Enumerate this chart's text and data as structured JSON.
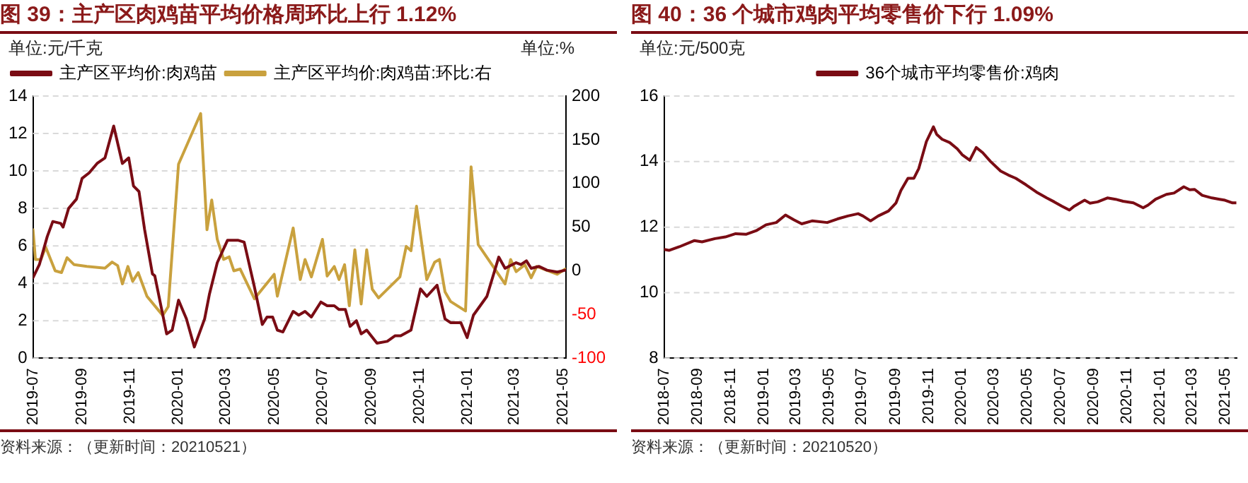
{
  "chart_data": [
    {
      "type": "line",
      "title": "图 39：主产区肉鸡苗平均价格周环比上行 1.12%",
      "ylabel": "单位:元/千克",
      "y2label": "单位:%",
      "xlim": [
        "2019-07-01",
        "2021-05-05"
      ],
      "xticks": [
        "2019-07",
        "2019-09",
        "2019-11",
        "2020-01",
        "2020-03",
        "2020-05",
        "2020-07",
        "2020-09",
        "2020-11",
        "2021-01",
        "2021-03",
        "2021-05"
      ],
      "ylim": [
        0,
        14
      ],
      "yticks": [
        0,
        2,
        4,
        6,
        8,
        10,
        12,
        14
      ],
      "y2lim": [
        -100,
        200
      ],
      "y2ticks": [
        -100,
        -50,
        0,
        50,
        100,
        150,
        200
      ],
      "grid": "y",
      "legend": "top left",
      "marker": "none",
      "line_style": "solid",
      "annotations": [
        "资料来源：（更新时间：20210521）"
      ],
      "series": [
        {
          "name": "主产区平均价:肉鸡苗",
          "color": "#7a0c14",
          "x": [
            "2019-07-01",
            "2019-07-09",
            "2019-07-19",
            "2019-07-26",
            "2019-08-05",
            "2019-08-08",
            "2019-08-15",
            "2019-08-25",
            "2019-09-01",
            "2019-09-10",
            "2019-09-20",
            "2019-09-30",
            "2019-10-11",
            "2019-10-22",
            "2019-10-30",
            "2019-11-05",
            "2019-11-12",
            "2019-11-19",
            "2019-11-29",
            "2019-12-02",
            "2019-12-17",
            "2019-12-24",
            "2020-01-01",
            "2020-01-11",
            "2020-01-21",
            "2020-02-03",
            "2020-02-09",
            "2020-02-19",
            "2020-03-03",
            "2020-03-09",
            "2020-03-16",
            "2020-03-24",
            "2020-04-06",
            "2020-04-16",
            "2020-04-22",
            "2020-04-29",
            "2020-05-05",
            "2020-05-12",
            "2020-05-25",
            "2020-06-01",
            "2020-06-09",
            "2020-06-17",
            "2020-06-29",
            "2020-07-07",
            "2020-07-16",
            "2020-07-22",
            "2020-07-30",
            "2020-08-05",
            "2020-08-13",
            "2020-08-19",
            "2020-08-26",
            "2020-09-08",
            "2020-09-21",
            "2020-10-01",
            "2020-10-08",
            "2020-10-21",
            "2020-11-02",
            "2020-11-10",
            "2020-11-23",
            "2020-12-03",
            "2020-12-10",
            "2020-12-23",
            "2020-12-31",
            "2021-01-08",
            "2021-01-25",
            "2021-02-09",
            "2021-02-17",
            "2021-03-03",
            "2021-03-09",
            "2021-03-16",
            "2021-03-22",
            "2021-04-01",
            "2021-04-11",
            "2021-04-24",
            "2021-05-04"
          ],
          "values": [
            4.3,
            5.0,
            6.5,
            7.3,
            7.2,
            7.0,
            8.0,
            8.5,
            9.6,
            9.9,
            10.4,
            10.7,
            12.4,
            10.4,
            10.7,
            9.2,
            8.9,
            6.9,
            4.5,
            4.4,
            1.3,
            1.5,
            3.1,
            2.1,
            0.6,
            2.1,
            3.4,
            5.1,
            6.3,
            6.3,
            6.3,
            6.2,
            3.8,
            1.8,
            2.2,
            2.2,
            1.5,
            1.4,
            2.5,
            2.3,
            2.5,
            2.2,
            3.0,
            2.8,
            2.8,
            2.6,
            2.6,
            1.7,
            2.0,
            1.3,
            1.5,
            0.8,
            0.9,
            1.2,
            1.2,
            1.5,
            3.7,
            3.3,
            3.9,
            2.1,
            1.9,
            1.9,
            1.1,
            2.3,
            3.3,
            5.4,
            4.8,
            5.1,
            5.0,
            5.2,
            4.8,
            4.9,
            4.7,
            4.6,
            4.7
          ]
        },
        {
          "name": "主产区平均价:肉鸡苗:环比:右",
          "color": "#c9a13e",
          "axis": "y2",
          "x": [
            "2019-07-01",
            "2019-07-04",
            "2019-07-11",
            "2019-07-17",
            "2019-07-29",
            "2019-08-06",
            "2019-08-13",
            "2019-08-22",
            "2019-09-07",
            "2019-09-30",
            "2019-10-09",
            "2019-10-16",
            "2019-10-22",
            "2019-10-29",
            "2019-11-04",
            "2019-11-11",
            "2019-11-22",
            "2019-12-12",
            "2019-12-19",
            "2020-01-01",
            "2020-01-29",
            "2020-02-06",
            "2020-02-12",
            "2020-02-19",
            "2020-02-27",
            "2020-03-05",
            "2020-03-11",
            "2020-03-19",
            "2020-04-06",
            "2020-05-01",
            "2020-05-05",
            "2020-05-25",
            "2020-06-03",
            "2020-06-09",
            "2020-06-17",
            "2020-07-01",
            "2020-07-07",
            "2020-07-16",
            "2020-07-22",
            "2020-07-29",
            "2020-08-04",
            "2020-08-11",
            "2020-08-19",
            "2020-08-26",
            "2020-09-02",
            "2020-09-10",
            "2020-10-07",
            "2020-10-15",
            "2020-10-21",
            "2020-10-28",
            "2020-11-10",
            "2020-11-20",
            "2020-11-26",
            "2020-12-03",
            "2020-12-10",
            "2020-12-29",
            "2021-01-05",
            "2021-01-14",
            "2021-02-17",
            "2021-02-24",
            "2021-03-03",
            "2021-03-14",
            "2021-03-22",
            "2021-03-29",
            "2021-04-18",
            "2021-04-24",
            "2021-05-04"
          ],
          "values": [
            47,
            13,
            13,
            27,
            0,
            -2,
            15,
            7,
            5,
            3,
            10,
            6,
            -15,
            5,
            -12,
            -2,
            -29,
            -51,
            -41,
            122,
            180,
            47,
            81,
            36,
            13,
            16,
            0,
            2,
            -32,
            -4,
            -29,
            49,
            -10,
            13,
            -7,
            36,
            -6,
            5,
            -10,
            7,
            -40,
            24,
            -38,
            24,
            -21,
            -31,
            -7,
            28,
            23,
            74,
            -10,
            10,
            13,
            -24,
            -35,
            -46,
            119,
            30,
            -15,
            13,
            -1,
            7,
            -8,
            5,
            -2,
            -4,
            2
          ]
        }
      ]
    },
    {
      "type": "line",
      "title": "图 40：36 个城市鸡肉平均零售价下行 1.09%",
      "ylabel": "单位:元/500克",
      "xlim": [
        "2018-07-01",
        "2021-05-22"
      ],
      "xticks": [
        "2018-07",
        "2018-09",
        "2018-11",
        "2019-01",
        "2019-03",
        "2019-05",
        "2019-07",
        "2019-09",
        "2019-11",
        "2020-01",
        "2020-03",
        "2020-05",
        "2020-07",
        "2020-09",
        "2020-11",
        "2021-01",
        "2021-03",
        "2021-05"
      ],
      "ylim": [
        8,
        16
      ],
      "yticks": [
        8,
        10,
        12,
        14,
        16
      ],
      "grid": "y",
      "legend": "top center",
      "marker": "none",
      "line_style": "solid",
      "annotations": [
        "资料来源：（更新时间：20210520）"
      ],
      "series": [
        {
          "name": "36个城市平均零售价:鸡肉",
          "color": "#7a0c14",
          "x": [
            "2018-07-01",
            "2018-07-10",
            "2018-07-29",
            "2018-08-26",
            "2018-09-09",
            "2018-10-03",
            "2018-10-22",
            "2018-11-10",
            "2018-11-29",
            "2018-12-18",
            "2019-01-05",
            "2019-01-24",
            "2019-02-10",
            "2019-02-26",
            "2019-03-12",
            "2019-03-31",
            "2019-04-28",
            "2019-05-17",
            "2019-06-05",
            "2019-06-24",
            "2019-07-03",
            "2019-07-17",
            "2019-07-31",
            "2019-08-19",
            "2019-09-02",
            "2019-09-11",
            "2019-09-24",
            "2019-10-05",
            "2019-10-14",
            "2019-10-28",
            "2019-11-10",
            "2019-11-16",
            "2019-11-26",
            "2019-12-10",
            "2019-12-24",
            "2020-01-02",
            "2020-01-16",
            "2020-01-28",
            "2020-02-09",
            "2020-02-23",
            "2020-03-13",
            "2020-03-27",
            "2020-04-10",
            "2020-04-29",
            "2020-05-18",
            "2020-06-06",
            "2020-06-20",
            "2020-07-04",
            "2020-07-18",
            "2020-07-27",
            "2020-08-15",
            "2020-08-25",
            "2020-09-08",
            "2020-09-26",
            "2020-10-11",
            "2020-10-25",
            "2020-11-13",
            "2020-12-01",
            "2020-12-10",
            "2020-12-24",
            "2021-01-13",
            "2021-01-27",
            "2021-02-14",
            "2021-02-25",
            "2021-03-06",
            "2021-03-20",
            "2021-04-07",
            "2021-04-21",
            "2021-05-01",
            "2021-05-15",
            "2021-05-22"
          ],
          "values": [
            11.32,
            11.29,
            11.4,
            11.59,
            11.55,
            11.65,
            11.7,
            11.8,
            11.78,
            11.89,
            12.07,
            12.14,
            12.37,
            12.22,
            12.1,
            12.19,
            12.14,
            12.25,
            12.34,
            12.41,
            12.34,
            12.19,
            12.34,
            12.49,
            12.74,
            13.12,
            13.49,
            13.49,
            13.79,
            14.61,
            15.06,
            14.83,
            14.68,
            14.58,
            14.39,
            14.21,
            14.04,
            14.43,
            14.27,
            14.01,
            13.71,
            13.59,
            13.49,
            13.29,
            13.07,
            12.89,
            12.77,
            12.64,
            12.52,
            12.64,
            12.82,
            12.73,
            12.77,
            12.89,
            12.85,
            12.79,
            12.74,
            12.59,
            12.67,
            12.85,
            13.0,
            13.04,
            13.23,
            13.14,
            13.15,
            12.97,
            12.89,
            12.85,
            12.82,
            12.74,
            12.74
          ]
        }
      ]
    }
  ]
}
